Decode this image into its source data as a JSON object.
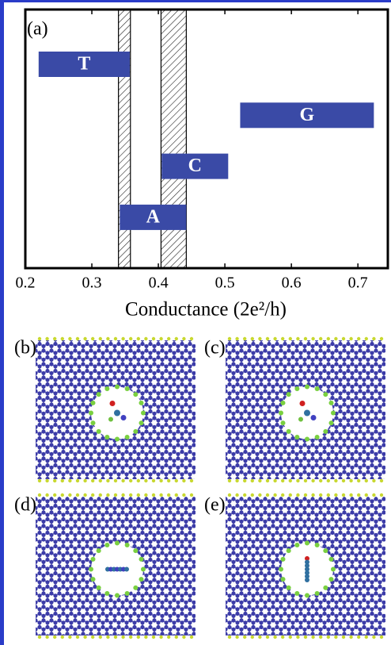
{
  "chart_data": {
    "type": "floating_bar",
    "panel_label": "(a)",
    "xlabel": "Conductance (2e²/h)",
    "xlim": [
      0.2,
      0.745
    ],
    "xticks": [
      0.2,
      0.3,
      0.4,
      0.5,
      0.6,
      0.7
    ],
    "color": "#3a4aa6",
    "bars": [
      {
        "label": "T",
        "start": 0.22,
        "end": 0.357
      },
      {
        "label": "G",
        "start": 0.523,
        "end": 0.724
      },
      {
        "label": "C",
        "start": 0.405,
        "end": 0.505
      },
      {
        "label": "A",
        "start": 0.342,
        "end": 0.442
      }
    ],
    "shaded_ranges": [
      [
        0.34,
        0.358
      ],
      [
        0.404,
        0.442
      ]
    ]
  },
  "panels": [
    {
      "label": "(b)"
    },
    {
      "label": "(c)"
    },
    {
      "label": "(d)"
    },
    {
      "label": "(e)"
    }
  ]
}
